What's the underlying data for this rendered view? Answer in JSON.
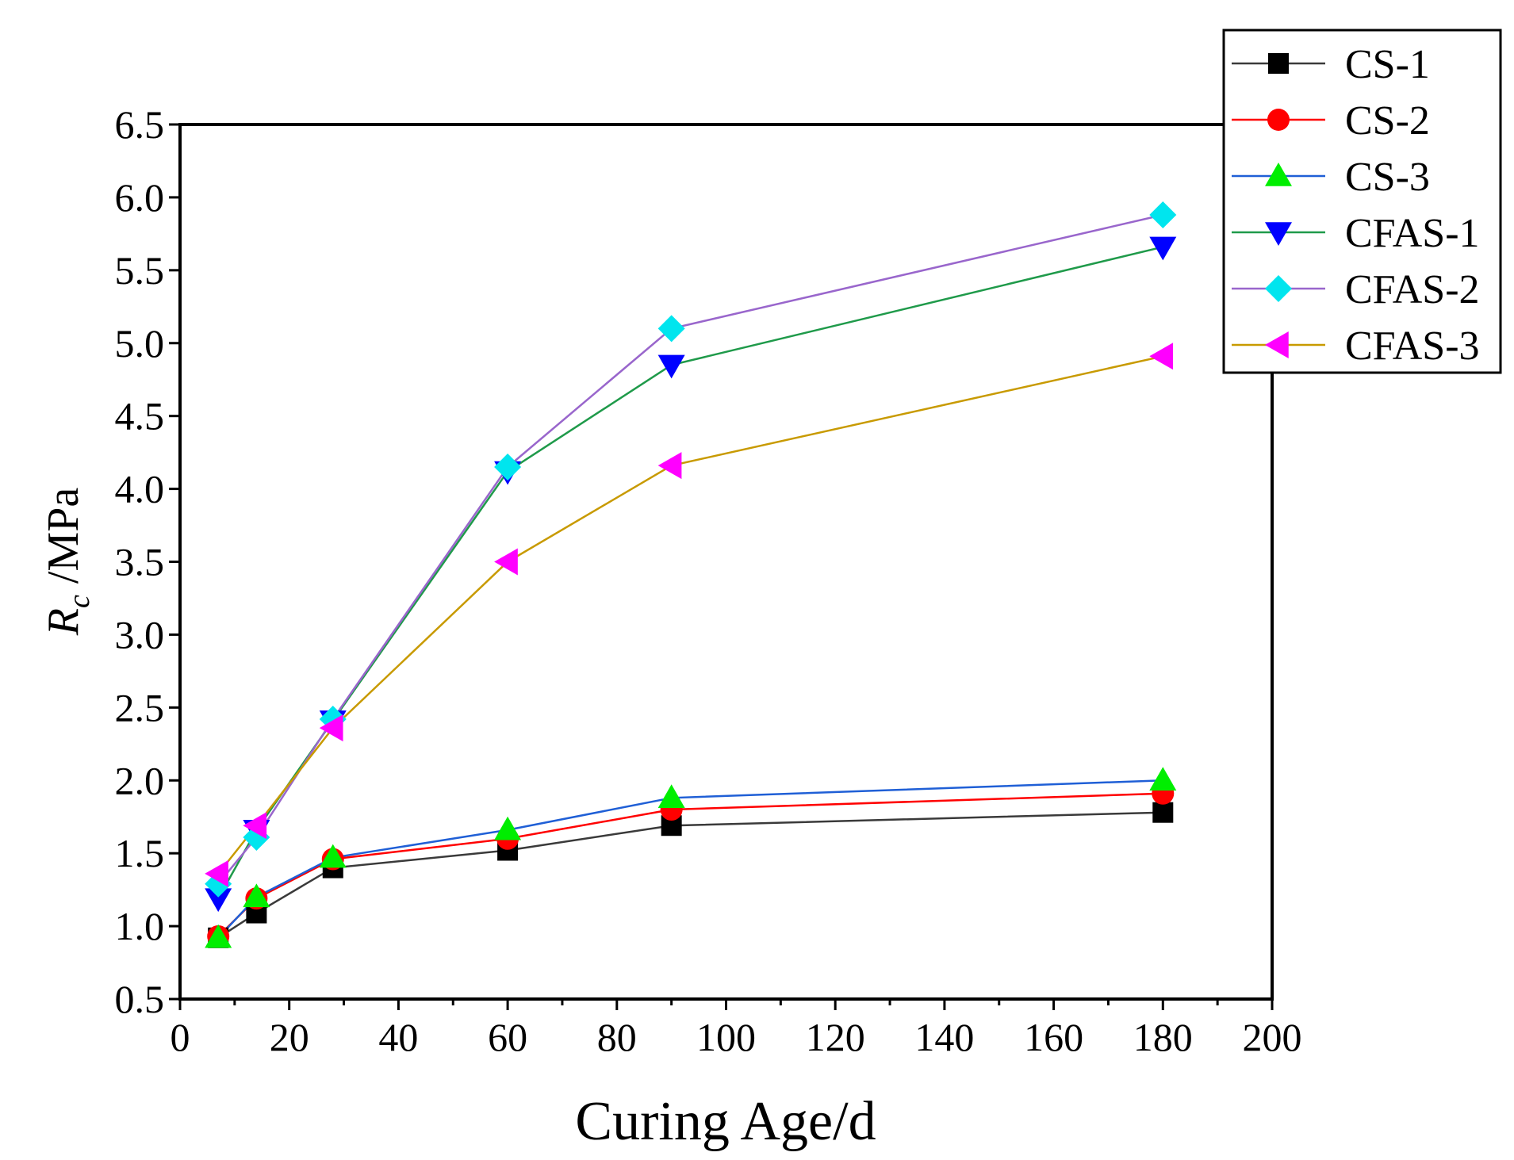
{
  "chart_data": {
    "type": "line",
    "title": "",
    "xlabel": "Curing Age/d",
    "ylabel": {
      "symbol": "R",
      "subscript": "c",
      "unit": " /MPa"
    },
    "xlim": [
      0,
      200
    ],
    "ylim": [
      0.5,
      6.5
    ],
    "x_ticks": [
      0,
      20,
      40,
      60,
      80,
      100,
      120,
      140,
      160,
      180,
      200
    ],
    "y_ticks": [
      0.5,
      1.0,
      1.5,
      2.0,
      2.5,
      3.0,
      3.5,
      4.0,
      4.5,
      5.0,
      5.5,
      6.0,
      6.5
    ],
    "x_tick_labels": [
      "0",
      "20",
      "40",
      "60",
      "80",
      "100",
      "120",
      "140",
      "160",
      "180",
      "200"
    ],
    "y_tick_labels": [
      "0.5",
      "1.0",
      "1.5",
      "2.0",
      "2.5",
      "3.0",
      "3.5",
      "4.0",
      "4.5",
      "5.0",
      "5.5",
      "6.0",
      "6.5"
    ],
    "legend_position": "top-right",
    "grid": false,
    "x": [
      7,
      14,
      28,
      60,
      90,
      180
    ],
    "series": [
      {
        "name": "CS-1",
        "line_color": "#3a3a3a",
        "marker": "square",
        "marker_color": "#000000",
        "values": [
          0.92,
          1.09,
          1.4,
          1.52,
          1.69,
          1.78
        ]
      },
      {
        "name": "CS-2",
        "line_color": "#ff0000",
        "marker": "circle",
        "marker_color": "#ff0000",
        "values": [
          0.93,
          1.19,
          1.46,
          1.6,
          1.8,
          1.91
        ]
      },
      {
        "name": "CS-3",
        "line_color": "#1f5fd6",
        "marker": "triangle-up",
        "marker_color": "#00ee00",
        "values": [
          0.92,
          1.2,
          1.47,
          1.66,
          1.88,
          2.0
        ]
      },
      {
        "name": "CFAS-1",
        "line_color": "#1f9a4a",
        "marker": "triangle-down",
        "marker_color": "#0000ff",
        "values": [
          1.19,
          1.66,
          2.41,
          4.12,
          4.85,
          5.66
        ]
      },
      {
        "name": "CFAS-2",
        "line_color": "#9966cc",
        "marker": "diamond",
        "marker_color": "#00e5ee",
        "values": [
          1.29,
          1.61,
          2.42,
          4.15,
          5.1,
          5.88
        ]
      },
      {
        "name": "CFAS-3",
        "line_color": "#c89a00",
        "marker": "triangle-left",
        "marker_color": "#ff00ff",
        "values": [
          1.36,
          1.69,
          2.36,
          3.5,
          4.16,
          4.91
        ]
      }
    ]
  }
}
